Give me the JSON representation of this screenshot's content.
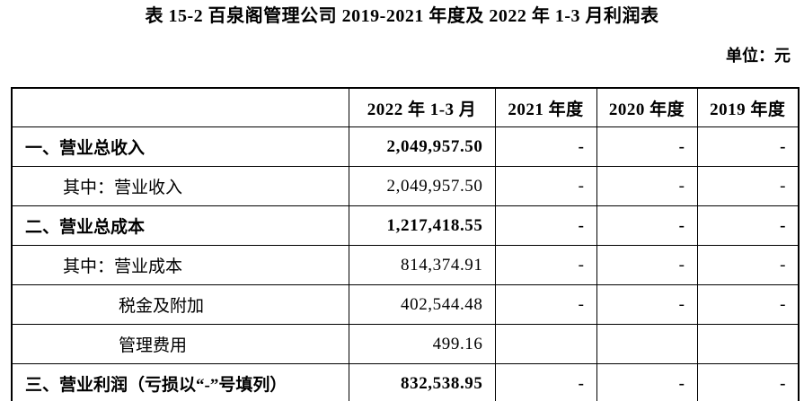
{
  "page": {
    "title": "表 15-2 百泉阁管理公司 2019-2021 年度及 2022 年 1-3 月利润表",
    "unit_label": "单位：元"
  },
  "table": {
    "columns": [
      "",
      "2022 年 1-3 月",
      "2021 年度",
      "2020 年度",
      "2019 年度"
    ],
    "rows": [
      {
        "label": "一、营业总收入",
        "indent": 0,
        "bold": true,
        "values": [
          "2,049,957.50",
          "-",
          "-",
          "-"
        ]
      },
      {
        "label": "其中：营业收入",
        "indent": 1,
        "bold": false,
        "values": [
          "2,049,957.50",
          "-",
          "-",
          "-"
        ]
      },
      {
        "label": "二、营业总成本",
        "indent": 0,
        "bold": true,
        "values": [
          "1,217,418.55",
          "-",
          "-",
          "-"
        ]
      },
      {
        "label": "其中：营业成本",
        "indent": 1,
        "bold": false,
        "values": [
          "814,374.91",
          "-",
          "-",
          "-"
        ]
      },
      {
        "label": "税金及附加",
        "indent": 2,
        "bold": false,
        "values": [
          "402,544.48",
          "-",
          "-",
          "-"
        ]
      },
      {
        "label": "管理费用",
        "indent": 2,
        "bold": false,
        "values": [
          "499.16",
          "",
          "",
          ""
        ]
      },
      {
        "label": "三、营业利润（亏损以“-”号填列）",
        "indent": 0,
        "bold": true,
        "values": [
          "832,538.95",
          "-",
          "-",
          "-"
        ]
      }
    ]
  }
}
